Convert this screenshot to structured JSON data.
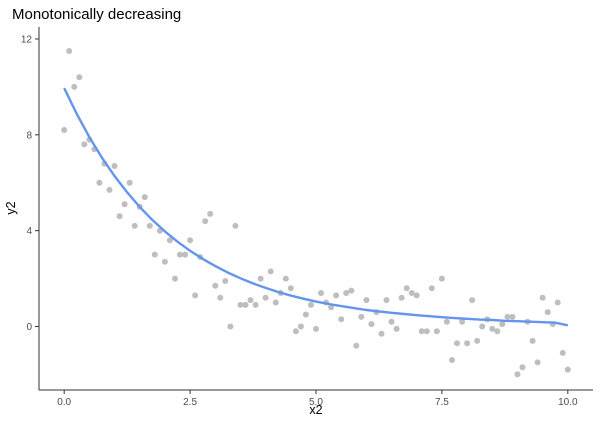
{
  "chart_data": {
    "type": "scatter",
    "title": "Monotonically decreasing",
    "xlabel": "x2",
    "ylabel": "y2",
    "xlim": [
      -0.5,
      10.5
    ],
    "ylim": [
      -2.65,
      12.5
    ],
    "x_ticks": [
      0,
      2.5,
      5,
      7.5,
      10
    ],
    "x_tick_labels": [
      "0.0",
      "2.5",
      "5.0",
      "7.5",
      "10.0"
    ],
    "y_ticks": [
      0,
      4,
      8,
      12
    ],
    "y_tick_labels": [
      "0",
      "4",
      "8",
      "12"
    ],
    "grid": false,
    "legend": "none",
    "colors": {
      "points": "#bebebe",
      "fit": "#6495ed",
      "axis": "#333333"
    },
    "series": [
      {
        "type": "scatter",
        "x": [
          0.0,
          0.1,
          0.2,
          0.3,
          0.4,
          0.5,
          0.6,
          0.7,
          0.8,
          0.9,
          1.0,
          1.1,
          1.2,
          1.3,
          1.4,
          1.5,
          1.6,
          1.7,
          1.8,
          1.9,
          2.0,
          2.1,
          2.2,
          2.3,
          2.4,
          2.5,
          2.6,
          2.7,
          2.8,
          2.9,
          3.0,
          3.1,
          3.2,
          3.3,
          3.4,
          3.5,
          3.6,
          3.7,
          3.8,
          3.9,
          4.0,
          4.1,
          4.2,
          4.3,
          4.4,
          4.5,
          4.6,
          4.7,
          4.8,
          4.9,
          5.0,
          5.1,
          5.2,
          5.3,
          5.4,
          5.5,
          5.6,
          5.7,
          5.8,
          5.9,
          6.0,
          6.1,
          6.2,
          6.3,
          6.4,
          6.5,
          6.6,
          6.7,
          6.8,
          6.9,
          7.0,
          7.1,
          7.2,
          7.3,
          7.4,
          7.5,
          7.6,
          7.7,
          7.8,
          7.9,
          8.0,
          8.1,
          8.2,
          8.3,
          8.4,
          8.5,
          8.6,
          8.7,
          8.8,
          8.9,
          9.0,
          9.1,
          9.2,
          9.3,
          9.4,
          9.5,
          9.6,
          9.7,
          9.8,
          9.9,
          10.0
        ],
        "y": [
          8.2,
          11.5,
          10.0,
          10.4,
          7.6,
          7.8,
          7.4,
          6.0,
          6.8,
          5.7,
          6.7,
          4.6,
          5.1,
          6.0,
          4.2,
          5.0,
          5.4,
          4.2,
          3.0,
          4.0,
          2.7,
          3.6,
          2.0,
          3.0,
          3.0,
          3.6,
          1.3,
          2.9,
          4.4,
          4.7,
          1.7,
          1.2,
          1.9,
          0.0,
          4.2,
          0.9,
          0.9,
          1.1,
          0.9,
          2.0,
          1.2,
          2.3,
          1.0,
          1.4,
          2.0,
          1.6,
          -0.2,
          0.0,
          0.5,
          0.9,
          -0.1,
          1.4,
          1.0,
          0.8,
          1.3,
          0.3,
          1.4,
          1.5,
          -0.8,
          0.4,
          1.1,
          0.1,
          0.6,
          -0.3,
          1.1,
          0.2,
          -0.1,
          1.2,
          1.6,
          1.4,
          1.3,
          -0.2,
          -0.2,
          1.6,
          -0.2,
          2.0,
          0.2,
          -1.4,
          -0.7,
          0.2,
          -0.7,
          1.1,
          -0.6,
          0.0,
          0.3,
          -0.1,
          -0.2,
          0.1,
          0.4,
          0.4,
          -2.0,
          -1.7,
          0.2,
          -0.6,
          -1.5,
          1.2,
          0.6,
          0.1,
          1.0,
          -1.1,
          -1.8
        ]
      },
      {
        "type": "line",
        "x": [
          0.0,
          0.25,
          0.5,
          0.75,
          1.0,
          1.25,
          1.5,
          1.75,
          2.0,
          2.25,
          2.5,
          2.75,
          3.0,
          3.25,
          3.5,
          3.75,
          4.0,
          4.25,
          4.5,
          4.75,
          5.0,
          5.25,
          5.5,
          5.75,
          6.0,
          6.25,
          6.5,
          6.75,
          7.0,
          7.25,
          7.5,
          7.75,
          8.0,
          8.25,
          8.5,
          8.75,
          9.0,
          9.25,
          9.5,
          9.75,
          10.0
        ],
        "y": [
          9.95,
          8.87,
          7.9,
          7.04,
          6.28,
          5.6,
          4.99,
          4.45,
          3.97,
          3.54,
          3.16,
          2.82,
          2.52,
          2.25,
          2.01,
          1.8,
          1.61,
          1.44,
          1.29,
          1.16,
          1.04,
          0.94,
          0.85,
          0.77,
          0.69,
          0.63,
          0.57,
          0.52,
          0.47,
          0.43,
          0.39,
          0.35,
          0.32,
          0.29,
          0.27,
          0.24,
          0.22,
          0.2,
          0.18,
          0.16,
          0.05
        ]
      }
    ]
  }
}
